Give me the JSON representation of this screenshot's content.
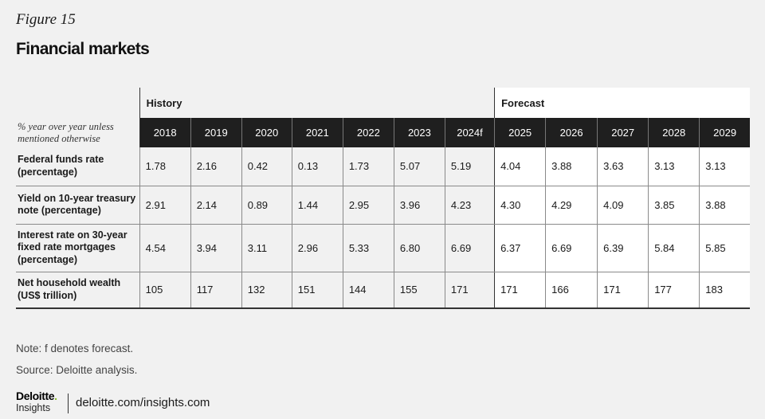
{
  "figure_label": "Figure 15",
  "title": "Financial markets",
  "unit_note": "% year over year unless mentioned otherwise",
  "group_history": "History",
  "group_forecast": "Forecast",
  "years": [
    "2018",
    "2019",
    "2020",
    "2021",
    "2022",
    "2023",
    "2024f",
    "2025",
    "2026",
    "2027",
    "2028",
    "2029"
  ],
  "rows": [
    {
      "label": "Federal funds rate (percentage)",
      "values": [
        "1.78",
        "2.16",
        "0.42",
        "0.13",
        "1.73",
        "5.07",
        "5.19",
        "4.04",
        "3.88",
        "3.63",
        "3.13",
        "3.13"
      ]
    },
    {
      "label": "Yield on 10-year treasury note (percentage)",
      "values": [
        "2.91",
        "2.14",
        "0.89",
        "1.44",
        "2.95",
        "3.96",
        "4.23",
        "4.30",
        "4.29",
        "4.09",
        "3.85",
        "3.88"
      ]
    },
    {
      "label": "Interest rate on 30-year fixed rate mortgages (percentage)",
      "values": [
        "4.54",
        "3.94",
        "3.11",
        "2.96",
        "5.33",
        "6.80",
        "6.69",
        "6.37",
        "6.69",
        "6.39",
        "5.84",
        "5.85"
      ]
    },
    {
      "label": "Net household wealth (US$ trillion)",
      "values": [
        "105",
        "117",
        "132",
        "151",
        "144",
        "155",
        "171",
        "171",
        "166",
        "171",
        "177",
        "183"
      ]
    }
  ],
  "note": "Note: f denotes forecast.",
  "source": "Source: Deloitte analysis.",
  "logo": {
    "word": "Deloitte",
    "dot": ".",
    "sub": "Insights"
  },
  "site": "deloitte.com/insights.com",
  "colors": {
    "header_bg": "#1f1f1f",
    "page_bg": "#f1f1f1",
    "forecast_bg": "#ffffff",
    "logo_dot": "#86bc25"
  }
}
